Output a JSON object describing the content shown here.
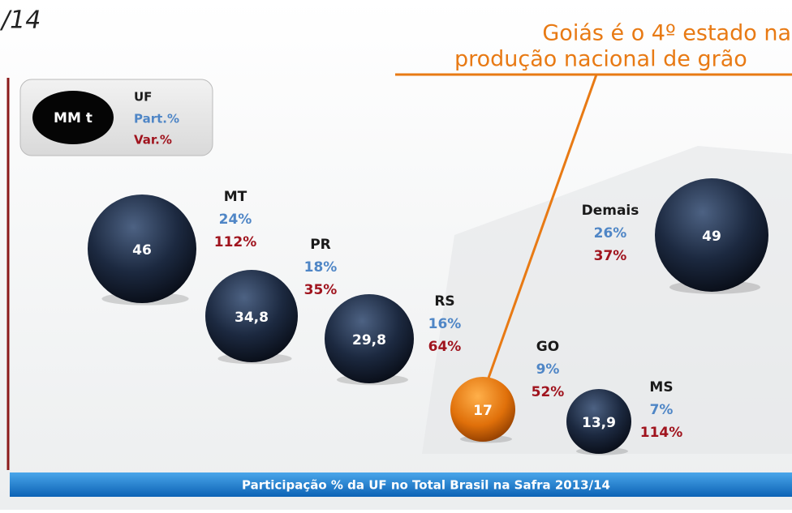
{
  "header": {
    "title": "/14"
  },
  "callout": {
    "lines": [
      "Goiás é o 4º estado na",
      "produção nacional de grão"
    ]
  },
  "legend": {
    "unit": "MM t",
    "uf": "UF",
    "part": "Part.%",
    "var": "Var.%"
  },
  "states": [
    {
      "uf": "MT",
      "part": "24%",
      "var": "112%",
      "value": "46"
    },
    {
      "uf": "PR",
      "part": "18%",
      "var": "35%",
      "value": "34,8"
    },
    {
      "uf": "RS",
      "part": "16%",
      "var": "64%",
      "value": "29,8"
    },
    {
      "uf": "GO",
      "part": "9%",
      "var": "52%",
      "value": "17"
    },
    {
      "uf": "MS",
      "part": "7%",
      "var": "114%",
      "value": "13,9"
    },
    {
      "uf": "Demais",
      "part": "26%",
      "var": "37%",
      "value": "49"
    }
  ],
  "footer": "Participação % da UF no Total Brasil na Safra 2013/14"
}
